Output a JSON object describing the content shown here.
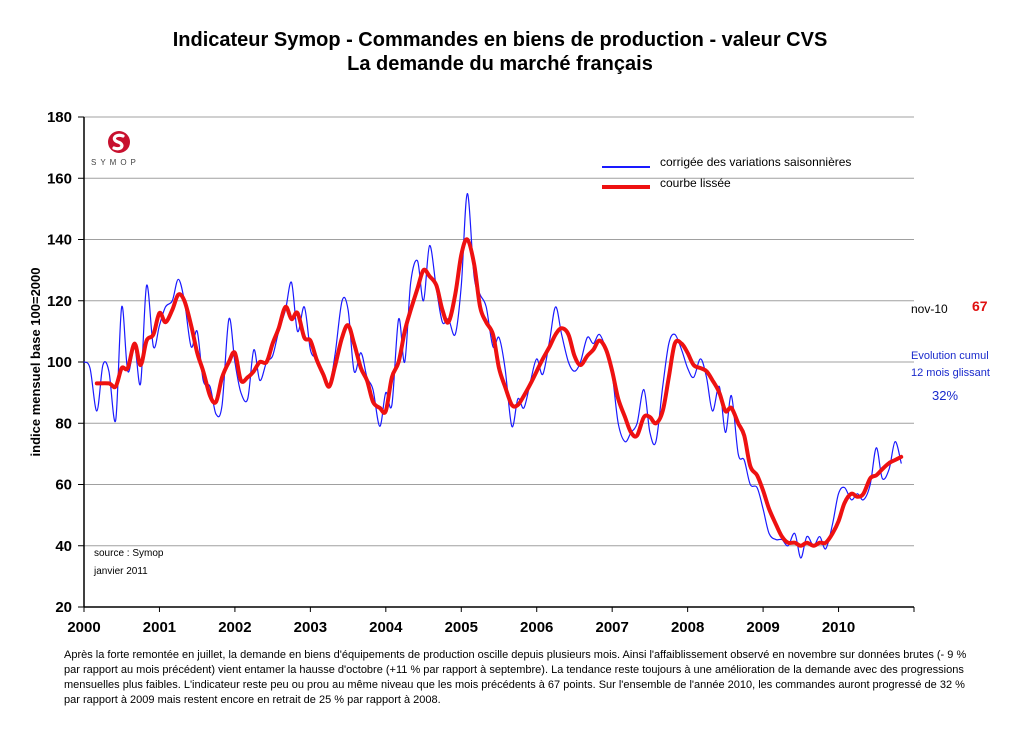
{
  "title_line1": "Indicateur Symop - Commandes en biens de production  -  valeur CVS",
  "title_line2": "La demande du marché français",
  "logo_text": "SYMOP",
  "colors": {
    "raw": "#1a1aff",
    "smooth": "#ee1111",
    "grid": "#a0a0a0"
  },
  "source": {
    "line1": "source : Symop",
    "line2": "janvier 2011"
  },
  "side": {
    "nov_label": "nov-10",
    "nov_value": "67",
    "evo_line1": "Evolution cumul",
    "evo_line2": "12 mois glissant",
    "evo_pct": "32%"
  },
  "caption": "Après la forte remontée en juillet, la demande en biens d'équipements de production oscille depuis plusieurs mois. Ainsi l'affaiblissement observé en novembre sur données brutes (- 9 % par rapport au mois précédent) vient entamer la hausse d'octobre (+11 % par rapport à septembre). La tendance reste toujours à une amélioration de la demande avec des progressions mensuelles plus faibles. L'indicateur reste peu ou prou au même niveau que les mois précédents à 67 points. Sur l'ensemble de l'année 2010, les commandes auront progressé de 32 % par rapport à 2009 mais restent encore en retrait de 25 % par rapport à 2008.",
  "chart_data": {
    "type": "line",
    "title": "Indicateur Symop - Commandes en biens de production  -  valeur CVS",
    "subtitle": "La demande du marché français",
    "ylabel": "indice mensuel base 100=2000",
    "xlabel": "",
    "ylim": [
      20,
      180
    ],
    "yticks": [
      20,
      40,
      60,
      80,
      100,
      120,
      140,
      160,
      180
    ],
    "xticks": [
      "2000",
      "2001",
      "2002",
      "2003",
      "2004",
      "2005",
      "2006",
      "2007",
      "2008",
      "2009",
      "2010"
    ],
    "xlim": [
      2000,
      2011
    ],
    "grid": "horizontal",
    "legend_position": "top-right",
    "series": [
      {
        "name": "corrigée des variations saisonnières",
        "color": "#1a1aff",
        "points": [
          [
            2000.0,
            100
          ],
          [
            2000.08,
            98
          ],
          [
            2000.17,
            84
          ],
          [
            2000.25,
            99
          ],
          [
            2000.33,
            97
          ],
          [
            2000.42,
            81
          ],
          [
            2000.5,
            118
          ],
          [
            2000.58,
            97
          ],
          [
            2000.67,
            105
          ],
          [
            2000.75,
            93
          ],
          [
            2000.83,
            125
          ],
          [
            2000.92,
            105
          ],
          [
            2001.0,
            112
          ],
          [
            2001.08,
            118
          ],
          [
            2001.17,
            120
          ],
          [
            2001.25,
            127
          ],
          [
            2001.33,
            120
          ],
          [
            2001.42,
            105
          ],
          [
            2001.5,
            110
          ],
          [
            2001.58,
            94
          ],
          [
            2001.67,
            92
          ],
          [
            2001.75,
            83
          ],
          [
            2001.83,
            86
          ],
          [
            2001.92,
            114
          ],
          [
            2002.0,
            100
          ],
          [
            2002.08,
            90
          ],
          [
            2002.17,
            88
          ],
          [
            2002.25,
            104
          ],
          [
            2002.33,
            94
          ],
          [
            2002.42,
            100
          ],
          [
            2002.5,
            102
          ],
          [
            2002.58,
            110
          ],
          [
            2002.67,
            117
          ],
          [
            2002.75,
            126
          ],
          [
            2002.83,
            110
          ],
          [
            2002.92,
            118
          ],
          [
            2003.0,
            104
          ],
          [
            2003.08,
            101
          ],
          [
            2003.17,
            96
          ],
          [
            2003.25,
            92
          ],
          [
            2003.33,
            103
          ],
          [
            2003.42,
            120
          ],
          [
            2003.5,
            117
          ],
          [
            2003.58,
            97
          ],
          [
            2003.67,
            103
          ],
          [
            2003.75,
            95
          ],
          [
            2003.83,
            91
          ],
          [
            2003.92,
            79
          ],
          [
            2004.0,
            90
          ],
          [
            2004.08,
            86
          ],
          [
            2004.17,
            114
          ],
          [
            2004.25,
            100
          ],
          [
            2004.33,
            126
          ],
          [
            2004.42,
            133
          ],
          [
            2004.5,
            120
          ],
          [
            2004.58,
            138
          ],
          [
            2004.67,
            124
          ],
          [
            2004.75,
            113
          ],
          [
            2004.83,
            114
          ],
          [
            2004.92,
            109
          ],
          [
            2005.0,
            125
          ],
          [
            2005.08,
            155
          ],
          [
            2005.17,
            128
          ],
          [
            2005.25,
            122
          ],
          [
            2005.33,
            118
          ],
          [
            2005.42,
            105
          ],
          [
            2005.5,
            108
          ],
          [
            2005.58,
            98
          ],
          [
            2005.67,
            79
          ],
          [
            2005.75,
            88
          ],
          [
            2005.83,
            85
          ],
          [
            2005.92,
            94
          ],
          [
            2006.0,
            101
          ],
          [
            2006.08,
            96
          ],
          [
            2006.17,
            107
          ],
          [
            2006.25,
            118
          ],
          [
            2006.33,
            109
          ],
          [
            2006.42,
            100
          ],
          [
            2006.5,
            97
          ],
          [
            2006.58,
            100
          ],
          [
            2006.67,
            108
          ],
          [
            2006.75,
            106
          ],
          [
            2006.83,
            109
          ],
          [
            2006.92,
            104
          ],
          [
            2007.0,
            96
          ],
          [
            2007.08,
            80
          ],
          [
            2007.17,
            74
          ],
          [
            2007.25,
            77
          ],
          [
            2007.33,
            80
          ],
          [
            2007.42,
            91
          ],
          [
            2007.5,
            77
          ],
          [
            2007.58,
            74
          ],
          [
            2007.67,
            92
          ],
          [
            2007.75,
            106
          ],
          [
            2007.83,
            109
          ],
          [
            2007.92,
            104
          ],
          [
            2008.0,
            98
          ],
          [
            2008.08,
            95
          ],
          [
            2008.17,
            101
          ],
          [
            2008.25,
            95
          ],
          [
            2008.33,
            84
          ],
          [
            2008.42,
            92
          ],
          [
            2008.5,
            77
          ],
          [
            2008.58,
            89
          ],
          [
            2008.67,
            70
          ],
          [
            2008.75,
            68
          ],
          [
            2008.83,
            60
          ],
          [
            2008.92,
            59
          ],
          [
            2009.0,
            52
          ],
          [
            2009.08,
            44
          ],
          [
            2009.17,
            42
          ],
          [
            2009.25,
            42
          ],
          [
            2009.33,
            40
          ],
          [
            2009.42,
            44
          ],
          [
            2009.5,
            36
          ],
          [
            2009.58,
            43
          ],
          [
            2009.67,
            40
          ],
          [
            2009.75,
            43
          ],
          [
            2009.83,
            39
          ],
          [
            2009.92,
            47
          ],
          [
            2010.0,
            57
          ],
          [
            2010.08,
            59
          ],
          [
            2010.17,
            55
          ],
          [
            2010.25,
            57
          ],
          [
            2010.33,
            55
          ],
          [
            2010.42,
            60
          ],
          [
            2010.5,
            72
          ],
          [
            2010.58,
            62
          ],
          [
            2010.67,
            65
          ],
          [
            2010.75,
            74
          ],
          [
            2010.83,
            67
          ]
        ]
      },
      {
        "name": "courbe lissée",
        "color": "#ee1111",
        "points": [
          [
            2000.17,
            93
          ],
          [
            2000.33,
            93
          ],
          [
            2000.42,
            92
          ],
          [
            2000.5,
            98
          ],
          [
            2000.58,
            98
          ],
          [
            2000.67,
            106
          ],
          [
            2000.75,
            99
          ],
          [
            2000.83,
            107
          ],
          [
            2000.92,
            109
          ],
          [
            2001.0,
            116
          ],
          [
            2001.08,
            113
          ],
          [
            2001.17,
            117
          ],
          [
            2001.25,
            122
          ],
          [
            2001.33,
            120
          ],
          [
            2001.42,
            112
          ],
          [
            2001.5,
            103
          ],
          [
            2001.58,
            97
          ],
          [
            2001.67,
            89
          ],
          [
            2001.75,
            87
          ],
          [
            2001.83,
            95
          ],
          [
            2001.92,
            100
          ],
          [
            2002.0,
            103
          ],
          [
            2002.08,
            94
          ],
          [
            2002.17,
            95
          ],
          [
            2002.25,
            97
          ],
          [
            2002.33,
            100
          ],
          [
            2002.42,
            100
          ],
          [
            2002.5,
            106
          ],
          [
            2002.58,
            111
          ],
          [
            2002.67,
            118
          ],
          [
            2002.75,
            114
          ],
          [
            2002.83,
            116
          ],
          [
            2002.92,
            108
          ],
          [
            2003.0,
            107
          ],
          [
            2003.08,
            101
          ],
          [
            2003.17,
            96
          ],
          [
            2003.25,
            92
          ],
          [
            2003.33,
            99
          ],
          [
            2003.42,
            108
          ],
          [
            2003.5,
            112
          ],
          [
            2003.58,
            106
          ],
          [
            2003.67,
            98
          ],
          [
            2003.75,
            94
          ],
          [
            2003.83,
            87
          ],
          [
            2003.92,
            85
          ],
          [
            2004.0,
            84
          ],
          [
            2004.08,
            95
          ],
          [
            2004.17,
            100
          ],
          [
            2004.25,
            110
          ],
          [
            2004.33,
            117
          ],
          [
            2004.42,
            124
          ],
          [
            2004.5,
            130
          ],
          [
            2004.58,
            128
          ],
          [
            2004.67,
            125
          ],
          [
            2004.75,
            117
          ],
          [
            2004.83,
            113
          ],
          [
            2004.92,
            122
          ],
          [
            2005.0,
            135
          ],
          [
            2005.08,
            140
          ],
          [
            2005.17,
            132
          ],
          [
            2005.25,
            118
          ],
          [
            2005.33,
            113
          ],
          [
            2005.42,
            109
          ],
          [
            2005.5,
            98
          ],
          [
            2005.58,
            92
          ],
          [
            2005.67,
            86
          ],
          [
            2005.75,
            86
          ],
          [
            2005.83,
            89
          ],
          [
            2005.92,
            93
          ],
          [
            2006.0,
            97
          ],
          [
            2006.08,
            101
          ],
          [
            2006.17,
            105
          ],
          [
            2006.25,
            109
          ],
          [
            2006.33,
            111
          ],
          [
            2006.42,
            109
          ],
          [
            2006.5,
            102
          ],
          [
            2006.58,
            99
          ],
          [
            2006.67,
            102
          ],
          [
            2006.75,
            104
          ],
          [
            2006.83,
            107
          ],
          [
            2006.92,
            104
          ],
          [
            2007.0,
            97
          ],
          [
            2007.08,
            88
          ],
          [
            2007.17,
            82
          ],
          [
            2007.25,
            77
          ],
          [
            2007.33,
            76
          ],
          [
            2007.42,
            82
          ],
          [
            2007.5,
            82
          ],
          [
            2007.58,
            80
          ],
          [
            2007.67,
            84
          ],
          [
            2007.75,
            95
          ],
          [
            2007.83,
            106
          ],
          [
            2007.92,
            106
          ],
          [
            2008.0,
            103
          ],
          [
            2008.08,
            99
          ],
          [
            2008.17,
            98
          ],
          [
            2008.25,
            97
          ],
          [
            2008.33,
            94
          ],
          [
            2008.42,
            90
          ],
          [
            2008.5,
            84
          ],
          [
            2008.58,
            85
          ],
          [
            2008.67,
            80
          ],
          [
            2008.75,
            76
          ],
          [
            2008.83,
            66
          ],
          [
            2008.92,
            63
          ],
          [
            2009.0,
            58
          ],
          [
            2009.08,
            52
          ],
          [
            2009.17,
            47
          ],
          [
            2009.25,
            43
          ],
          [
            2009.33,
            41
          ],
          [
            2009.42,
            41
          ],
          [
            2009.5,
            40
          ],
          [
            2009.58,
            41
          ],
          [
            2009.67,
            40
          ],
          [
            2009.75,
            41
          ],
          [
            2009.83,
            41
          ],
          [
            2009.92,
            44
          ],
          [
            2010.0,
            48
          ],
          [
            2010.08,
            54
          ],
          [
            2010.17,
            57
          ],
          [
            2010.25,
            56
          ],
          [
            2010.33,
            57
          ],
          [
            2010.42,
            62
          ],
          [
            2010.5,
            63
          ],
          [
            2010.58,
            65
          ],
          [
            2010.67,
            67
          ],
          [
            2010.75,
            68
          ],
          [
            2010.83,
            69
          ]
        ]
      }
    ]
  }
}
